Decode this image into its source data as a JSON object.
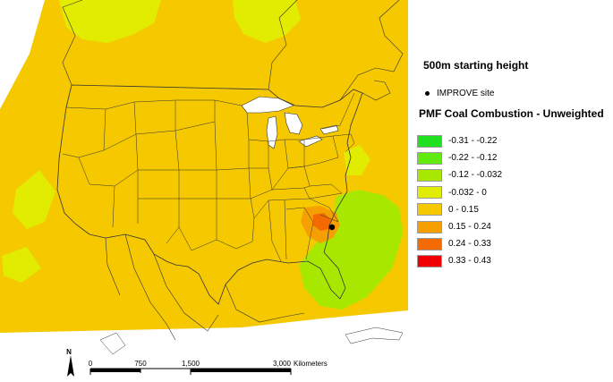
{
  "starting_height": "500m starting height",
  "site_marker_label": "IMPROVE site",
  "legend": {
    "title": "PMF Coal Combustion - Unweighted",
    "items": [
      {
        "label": "-0.31 - -0.22",
        "color": "#20e020"
      },
      {
        "label": "-0.22 - -0.12",
        "color": "#60ea10"
      },
      {
        "label": "-0.12 - -0.032",
        "color": "#a8e800"
      },
      {
        "label": "-0.032 - 0",
        "color": "#e2ec00"
      },
      {
        "label": "0 - 0.15",
        "color": "#f5c800"
      },
      {
        "label": "0.15 - 0.24",
        "color": "#f5a000"
      },
      {
        "label": "0.24 - 0.33",
        "color": "#f56a00"
      },
      {
        "label": "0.33 - 0.43",
        "color": "#f00000"
      }
    ]
  },
  "scale_bar": {
    "ticks": [
      "0",
      "750",
      "1,500",
      "3,000"
    ],
    "units": "Kilometers"
  },
  "north_arrow_label": "N",
  "colors": {
    "background_fill": "#f5c800",
    "low_fill": "#e2ec00",
    "negative_fill": "#a8e800",
    "mid_fill": "#f5a000",
    "high_fill": "#f56a00",
    "boundary": "#333333"
  }
}
